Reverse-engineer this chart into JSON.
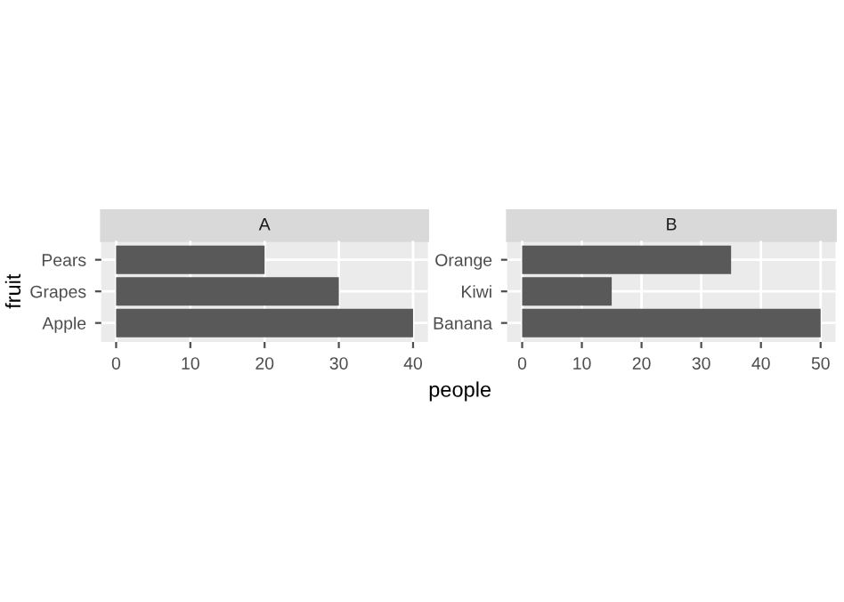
{
  "chart_data": [
    {
      "type": "bar",
      "orientation": "horizontal",
      "title": "A",
      "ylabel": "fruit",
      "categories": [
        "Pears",
        "Grapes",
        "Apple"
      ],
      "values": [
        20,
        30,
        40
      ],
      "color": "#595959",
      "xlim": [
        -2,
        42
      ],
      "xticks": [
        0,
        10,
        20,
        30,
        40
      ],
      "grid": true,
      "legend": false
    },
    {
      "type": "bar",
      "orientation": "horizontal",
      "title": "B",
      "xlabel": "people",
      "categories": [
        "Orange",
        "Kiwi",
        "Banana"
      ],
      "values": [
        35,
        15,
        50
      ],
      "color": "#595959",
      "xlim": [
        -2.5,
        52.5
      ],
      "xticks": [
        0,
        10,
        20,
        30,
        40,
        50
      ],
      "grid": true,
      "legend": false
    }
  ]
}
